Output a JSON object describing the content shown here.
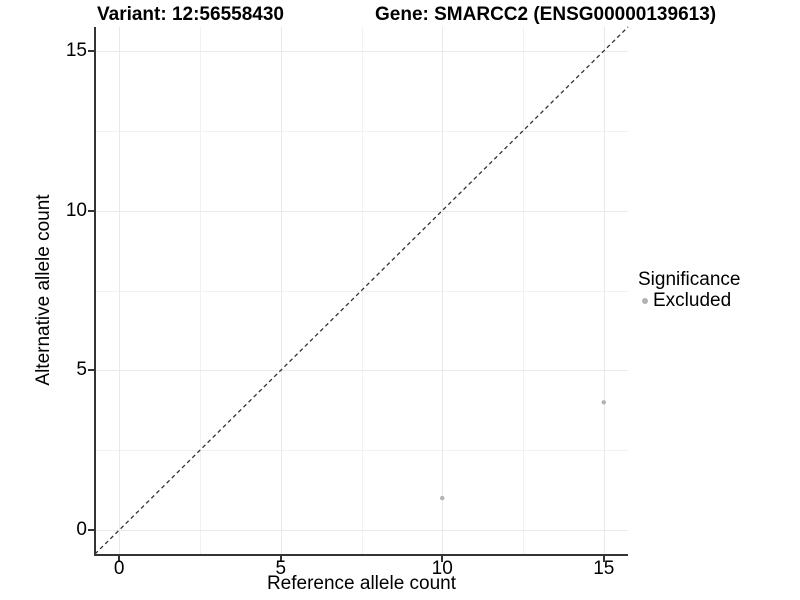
{
  "header": {
    "title_variant": "Variant: 12:56558430",
    "title_gene": "Gene: SMARCC2 (ENSG00000139613)"
  },
  "chart_data": {
    "type": "scatter",
    "title": "Variant: 12:56558430   Gene: SMARCC2 (ENSG00000139613)",
    "xlabel": "Reference allele count",
    "ylabel": "Alternative allele count",
    "xlim": [
      -0.75,
      15.75
    ],
    "ylim": [
      -0.75,
      15.75
    ],
    "x_ticks": [
      0,
      5,
      10,
      15
    ],
    "y_ticks": [
      0,
      5,
      10,
      15
    ],
    "minor_ticks": [
      2.5,
      7.5,
      12.5
    ],
    "grid": true,
    "series": [
      {
        "name": "Excluded",
        "color": "#b2b2b2",
        "points": [
          {
            "x": 10,
            "y": 1
          },
          {
            "x": 15,
            "y": 4
          }
        ]
      }
    ],
    "reference_line": {
      "slope": 1,
      "intercept": 0,
      "style": "dashed",
      "color": "#333333"
    },
    "legend": {
      "title": "Significance",
      "position": "right",
      "entries": [
        {
          "label": "Excluded",
          "color": "#b2b2b2"
        }
      ]
    },
    "colors": {
      "background": "#ffffff",
      "axis_line": "#343434",
      "major_grid": "#e9e9e9",
      "minor_grid": "#f1f1f1",
      "point": "#b2b2b2"
    }
  }
}
